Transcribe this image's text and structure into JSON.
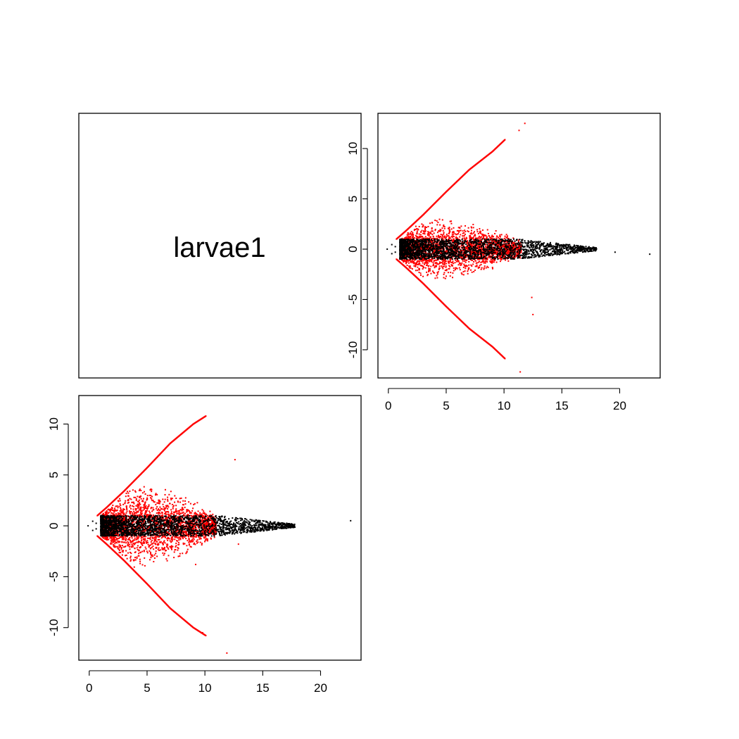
{
  "chart_data": {
    "type": "scatter",
    "layout": "pairs",
    "diagonal_label": "larvae1",
    "colors": {
      "significant": "#ff0000",
      "non_significant": "#000000"
    },
    "panels": [
      {
        "id": "upper-right",
        "x_ticks": [
          "0",
          "5",
          "10",
          "15",
          "20"
        ],
        "y_ticks": [
          "-10",
          "-5",
          "0",
          "5",
          "10"
        ],
        "xlim": [
          -0.9,
          23.5
        ],
        "ylim": [
          -12.8,
          13.5
        ],
        "series": [
          {
            "color": "#ff0000",
            "envelope_upper": [
              [
                0.7,
                1.0
              ],
              [
                1.5,
                1.8
              ],
              [
                3.0,
                3.4
              ],
              [
                5.0,
                5.7
              ],
              [
                7.0,
                7.9
              ],
              [
                9.0,
                9.7
              ],
              [
                10.1,
                10.9
              ]
            ],
            "dense_region": {
              "x": [
                1.1,
                11.5
              ],
              "y_max": 3.0
            }
          },
          {
            "color": "#000000",
            "band": {
              "x": [
                1.0,
                18.0
              ],
              "y": [
                -1.0,
                1.0
              ]
            }
          }
        ],
        "outliers": [
          [
            11.3,
            11.8
          ],
          [
            11.8,
            12.5
          ],
          [
            11.4,
            -12.2
          ],
          [
            12.4,
            -4.8
          ],
          [
            12.5,
            -6.5
          ],
          [
            19.6,
            -0.3
          ],
          [
            22.6,
            -0.5
          ]
        ]
      },
      {
        "id": "lower-left",
        "x_ticks": [
          "0",
          "5",
          "10",
          "15",
          "20"
        ],
        "y_ticks": [
          "-10",
          "-5",
          "0",
          "5",
          "10"
        ],
        "xlim": [
          -0.9,
          23.5
        ],
        "ylim": [
          -13.2,
          12.8
        ],
        "series": [
          {
            "color": "#ff0000",
            "envelope_upper": [
              [
                0.7,
                1.0
              ],
              [
                1.5,
                1.8
              ],
              [
                3.0,
                3.4
              ],
              [
                5.0,
                5.7
              ],
              [
                7.0,
                8.1
              ],
              [
                9.0,
                10.0
              ],
              [
                10.1,
                10.8
              ]
            ],
            "dense_region": {
              "x": [
                1.1,
                11.0
              ],
              "y_max": 4.2
            }
          },
          {
            "color": "#000000",
            "band": {
              "x": [
                1.0,
                17.8
              ],
              "y": [
                -1.0,
                1.0
              ]
            }
          }
        ],
        "outliers": [
          [
            12.6,
            6.5
          ],
          [
            11.9,
            -12.5
          ],
          [
            9.8,
            -10.5
          ],
          [
            22.6,
            0.5
          ],
          [
            12.9,
            -1.8
          ],
          [
            9.2,
            -3.8
          ]
        ]
      }
    ]
  }
}
